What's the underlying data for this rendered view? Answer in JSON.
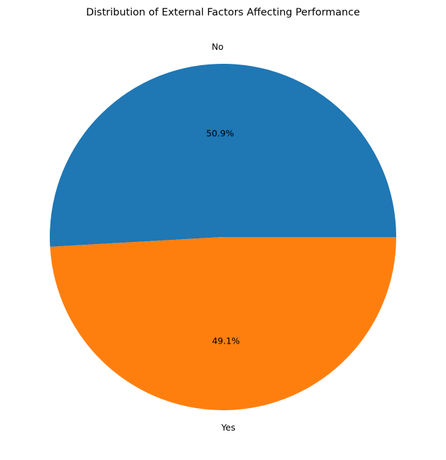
{
  "chart_data": {
    "type": "pie",
    "title": "Distribution of External Factors Affecting Performance",
    "categories": [
      "No",
      "Yes"
    ],
    "values": [
      50.9,
      49.1
    ],
    "percent_labels": [
      "50.9%",
      "49.1%"
    ],
    "colors": [
      "#1f77b4",
      "#ff7f0e"
    ],
    "start_angle_deg": 0,
    "direction": "counterclockwise",
    "legend": "none"
  }
}
